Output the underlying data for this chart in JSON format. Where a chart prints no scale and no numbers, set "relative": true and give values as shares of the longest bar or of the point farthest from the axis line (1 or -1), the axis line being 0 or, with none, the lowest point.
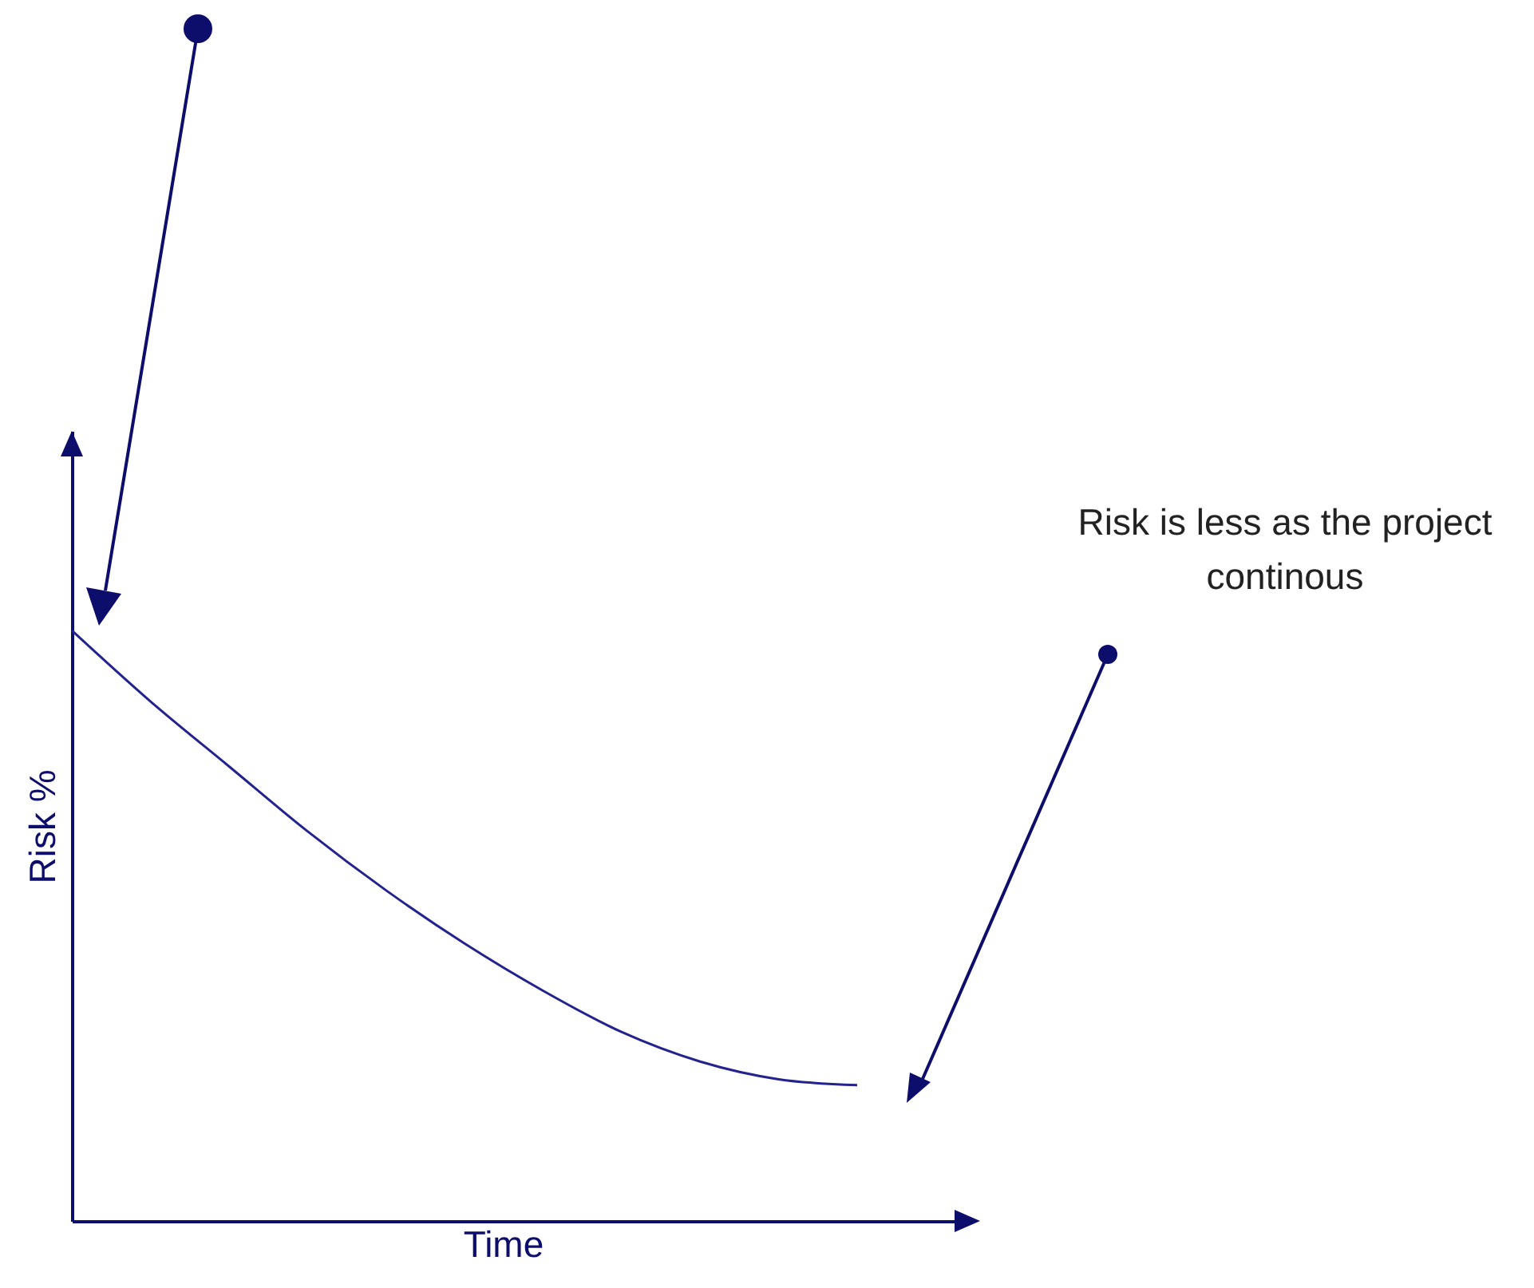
{
  "chart_data": {
    "type": "line",
    "relative": true,
    "xlabel": "Time",
    "ylabel": "Risk %",
    "categories": [
      null,
      null,
      null,
      null,
      null,
      null,
      null,
      null,
      null,
      null,
      null
    ],
    "series": [
      {
        "color": "#23238f",
        "values": [
          1,
          0.88,
          0.77,
          0.66,
          0.56,
          0.47,
          0.39,
          0.32,
          0.27,
          0.24,
          0.23
        ]
      }
    ],
    "annotations": [
      "Risk is less as the project continous"
    ]
  }
}
